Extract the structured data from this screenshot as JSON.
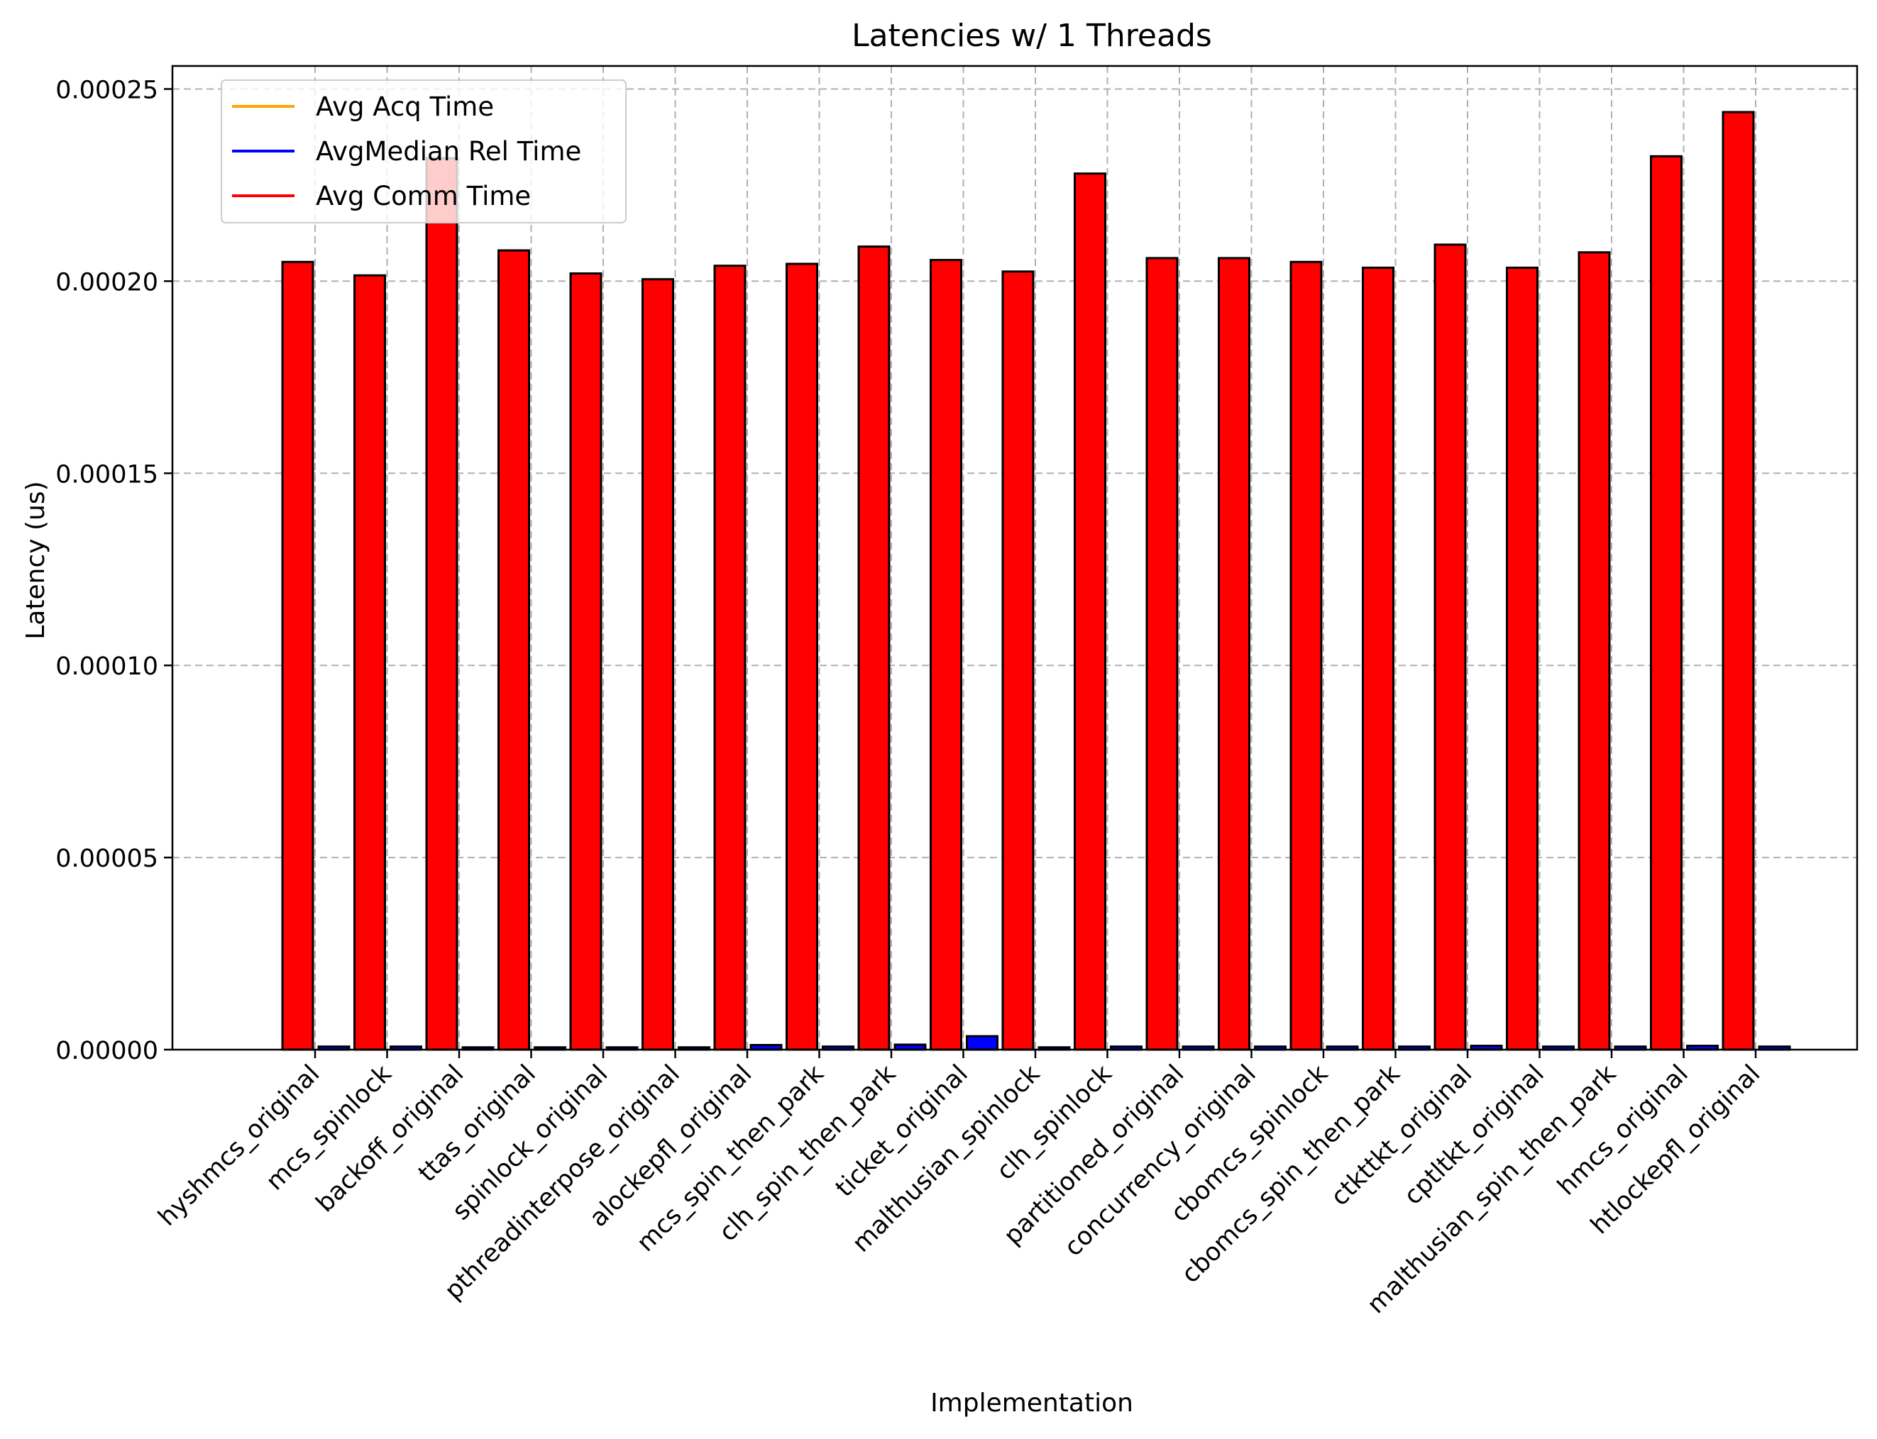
{
  "chart_data": {
    "type": "bar",
    "title": "Latencies w/ 1 Threads",
    "xlabel": "Implementation",
    "ylabel": "Latency (us)",
    "ylim": [
      0,
      0.000256
    ],
    "yticks": [
      "0.00000",
      "0.00005",
      "0.00010",
      "0.00015",
      "0.00020",
      "0.00025"
    ],
    "ytick_values": [
      0,
      5e-05,
      0.0001,
      0.00015,
      0.0002,
      0.00025
    ],
    "grid": true,
    "legend_position": "top-left",
    "categories": [
      "hyshmcs_original",
      "mcs_spinlock",
      "backoff_original",
      "ttas_original",
      "spinlock_original",
      "pthreadinterpose_original",
      "alockepfl_original",
      "mcs_spin_then_park",
      "clh_spin_then_park",
      "ticket_original",
      "malthusian_spinlock",
      "clh_spinlock",
      "partitioned_original",
      "concurrency_original",
      "cbomcs_spinlock",
      "cbomcs_spin_then_park",
      "ctkttkt_original",
      "cptltkt_original",
      "malthusian_spin_then_park",
      "hmcs_original",
      "htlockepfl_original"
    ],
    "series": [
      {
        "name": "Avg Comm Time",
        "color": "#ff0000",
        "values": [
          0.000205,
          0.0002015,
          0.000232,
          0.000208,
          0.000202,
          0.0002005,
          0.000204,
          0.0002045,
          0.000209,
          0.0002055,
          0.0002025,
          0.000228,
          0.000206,
          0.000206,
          0.000205,
          0.0002035,
          0.0002095,
          0.0002035,
          0.0002075,
          0.0002325,
          0.000244
        ]
      },
      {
        "name": "AvgMedian Rel Time",
        "color": "#0000ff",
        "values": [
          8e-07,
          8e-07,
          6e-07,
          6e-07,
          6e-07,
          6e-07,
          1.2e-06,
          8e-07,
          1.3e-06,
          3.5e-06,
          6e-07,
          8e-07,
          8e-07,
          8e-07,
          8e-07,
          8e-07,
          1e-06,
          8e-07,
          8e-07,
          1e-06,
          8e-07
        ]
      },
      {
        "name": "Avg Acq Time",
        "color": "#ffa500",
        "values": [
          1e-07,
          1e-07,
          1e-07,
          1e-07,
          1e-07,
          1e-07,
          1e-07,
          1e-07,
          1e-07,
          1e-07,
          1e-07,
          1e-07,
          1e-07,
          1e-07,
          1e-07,
          1e-07,
          1e-07,
          1e-07,
          1e-07,
          1e-07,
          1e-07
        ]
      }
    ],
    "legend": [
      {
        "label": "Avg Acq Time",
        "color": "#ffa500"
      },
      {
        "label": "AvgMedian Rel Time",
        "color": "#0000ff"
      },
      {
        "label": "Avg Comm Time",
        "color": "#ff0000"
      }
    ]
  }
}
